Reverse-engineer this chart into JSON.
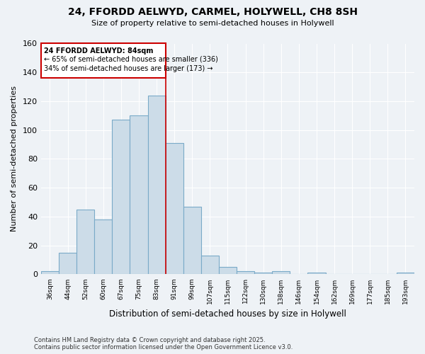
{
  "title": "24, FFORDD AELWYD, CARMEL, HOLYWELL, CH8 8SH",
  "subtitle": "Size of property relative to semi-detached houses in Holywell",
  "xlabel": "Distribution of semi-detached houses by size in Holywell",
  "ylabel": "Number of semi-detached properties",
  "categories": [
    "36sqm",
    "44sqm",
    "52sqm",
    "60sqm",
    "67sqm",
    "75sqm",
    "83sqm",
    "91sqm",
    "99sqm",
    "107sqm",
    "115sqm",
    "122sqm",
    "130sqm",
    "138sqm",
    "146sqm",
    "154sqm",
    "162sqm",
    "169sqm",
    "177sqm",
    "185sqm",
    "193sqm"
  ],
  "values": [
    2,
    15,
    45,
    38,
    107,
    110,
    124,
    91,
    47,
    13,
    5,
    2,
    1,
    2,
    0,
    1,
    0,
    0,
    0,
    0,
    1
  ],
  "bar_color": "#ccdce8",
  "bar_edge_color": "#7aaac8",
  "line_color": "#cc0000",
  "annotation_text_1": "24 FFORDD AELWYD: 84sqm",
  "annotation_text_2": "← 65% of semi-detached houses are smaller (336)",
  "annotation_text_3": "34% of semi-detached houses are larger (173) →",
  "annotation_box_color": "#ffffff",
  "annotation_box_edge": "#cc0000",
  "ylim": [
    0,
    160
  ],
  "yticks": [
    0,
    20,
    40,
    60,
    80,
    100,
    120,
    140,
    160
  ],
  "footer_line1": "Contains HM Land Registry data © Crown copyright and database right 2025.",
  "footer_line2": "Contains public sector information licensed under the Open Government Licence v3.0.",
  "bg_color": "#eef2f6",
  "grid_color": "#ffffff"
}
